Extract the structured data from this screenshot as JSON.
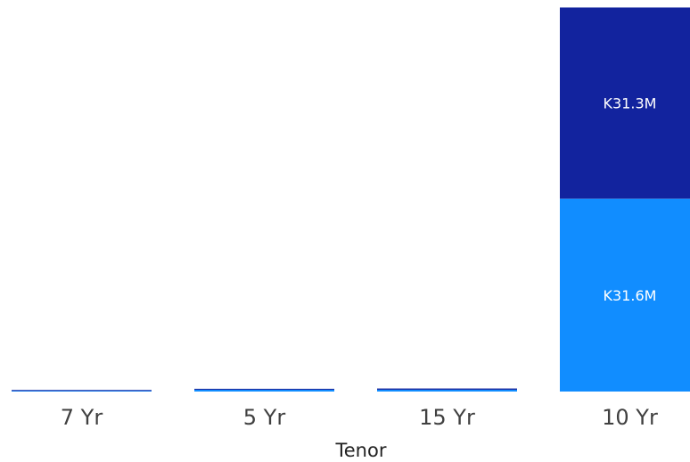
{
  "chart_data": {
    "type": "bar",
    "stacked": true,
    "xlabel": "Tenor",
    "ylabel": "",
    "categories": [
      "7 Yr",
      "5 Yr",
      "15 Yr",
      "10 Yr"
    ],
    "series": [
      {
        "values": [
          0.15,
          0.3,
          0.3,
          31.6
        ],
        "labels": [
          "",
          "",
          "",
          "K31.6M"
        ],
        "color": "#118DFF"
      },
      {
        "values": [
          0.1,
          0.15,
          0.2,
          31.3
        ],
        "labels": [
          "",
          "",
          "",
          "K31.3M"
        ],
        "color": "#12239E"
      }
    ],
    "ylim": [
      0,
      63.4
    ],
    "legend": "none",
    "grid": false
  }
}
